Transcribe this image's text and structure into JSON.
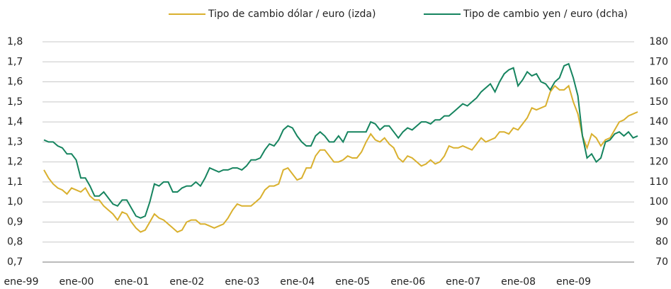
{
  "chart_data": {
    "type": "line",
    "categories": [
      "ene-99",
      null,
      null,
      null,
      null,
      null,
      null,
      null,
      null,
      null,
      null,
      null,
      "ene-00",
      null,
      null,
      null,
      null,
      null,
      null,
      null,
      null,
      null,
      null,
      null,
      "ene-01",
      null,
      null,
      null,
      null,
      null,
      null,
      null,
      null,
      null,
      null,
      null,
      "ene-02",
      null,
      null,
      null,
      null,
      null,
      null,
      null,
      null,
      null,
      null,
      null,
      "ene-03",
      null,
      null,
      null,
      null,
      null,
      null,
      null,
      null,
      null,
      null,
      null,
      "ene-04",
      null,
      null,
      null,
      null,
      null,
      null,
      null,
      null,
      null,
      null,
      null,
      "ene-05",
      null,
      null,
      null,
      null,
      null,
      null,
      null,
      null,
      null,
      null,
      null,
      "ene-06",
      null,
      null,
      null,
      null,
      null,
      null,
      null,
      null,
      null,
      null,
      null,
      "ene-07",
      null,
      null,
      null,
      null,
      null,
      null,
      null,
      null,
      null,
      null,
      null,
      "ene-08",
      null,
      null,
      null,
      null,
      null,
      null,
      null,
      null,
      null,
      null,
      null,
      "ene-09",
      null,
      null,
      null,
      null,
      null,
      null,
      null,
      null,
      null
    ],
    "series": [
      {
        "name": "Tipo de cambio dólar / euro (izda)",
        "color": "#d9b02e",
        "axis": "y",
        "values": [
          1.16,
          1.12,
          1.09,
          1.07,
          1.06,
          1.04,
          1.07,
          1.06,
          1.05,
          1.07,
          1.03,
          1.01,
          1.01,
          0.98,
          0.96,
          0.94,
          0.91,
          0.95,
          0.94,
          0.9,
          0.87,
          0.85,
          0.86,
          0.9,
          0.94,
          0.92,
          0.91,
          0.89,
          0.87,
          0.85,
          0.86,
          0.9,
          0.91,
          0.91,
          0.89,
          0.89,
          0.88,
          0.87,
          0.88,
          0.89,
          0.92,
          0.96,
          0.99,
          0.98,
          0.98,
          0.98,
          1.0,
          1.02,
          1.06,
          1.08,
          1.08,
          1.09,
          1.16,
          1.17,
          1.14,
          1.11,
          1.12,
          1.17,
          1.17,
          1.23,
          1.26,
          1.26,
          1.23,
          1.2,
          1.2,
          1.21,
          1.23,
          1.22,
          1.22,
          1.25,
          1.3,
          1.34,
          1.31,
          1.3,
          1.32,
          1.29,
          1.27,
          1.22,
          1.2,
          1.23,
          1.22,
          1.2,
          1.18,
          1.19,
          1.21,
          1.19,
          1.2,
          1.23,
          1.28,
          1.27,
          1.27,
          1.28,
          1.27,
          1.26,
          1.29,
          1.32,
          1.3,
          1.31,
          1.32,
          1.35,
          1.35,
          1.34,
          1.37,
          1.36,
          1.39,
          1.42,
          1.47,
          1.46,
          1.47,
          1.48,
          1.55,
          1.58,
          1.56,
          1.56,
          1.58,
          1.5,
          1.44,
          1.33,
          1.27,
          1.34,
          1.32,
          1.28,
          1.31,
          1.32,
          1.36,
          1.4,
          1.41,
          1.43,
          1.44,
          1.45
        ]
      },
      {
        "name": "Tipo de cambio yen / euro (dcha)",
        "color": "#16845f",
        "axis": "y2",
        "values": [
          131,
          130,
          130,
          128,
          127,
          124,
          124,
          121,
          112,
          112,
          108,
          103,
          103,
          105,
          102,
          99,
          98,
          101,
          101,
          97,
          93,
          92,
          93,
          100,
          109,
          108,
          110,
          110,
          105,
          105,
          107,
          108,
          108,
          110,
          108,
          112,
          117,
          116,
          115,
          116,
          116,
          117,
          117,
          116,
          118,
          121,
          121,
          122,
          126,
          129,
          128,
          131,
          136,
          138,
          137,
          133,
          130,
          128,
          128,
          133,
          135,
          133,
          130,
          130,
          133,
          130,
          135,
          135,
          135,
          135,
          135,
          140,
          139,
          136,
          138,
          138,
          135,
          132,
          135,
          137,
          136,
          138,
          140,
          140,
          139,
          141,
          141,
          143,
          143,
          145,
          147,
          149,
          148,
          150,
          152,
          155,
          157,
          159,
          155,
          160,
          164,
          166,
          167,
          158,
          161,
          165,
          163,
          164,
          160,
          159,
          156,
          160,
          162,
          168,
          169,
          162,
          153,
          133,
          122,
          124,
          120,
          122,
          130,
          131,
          134,
          135,
          133,
          135,
          132,
          133
        ]
      }
    ],
    "ylim": [
      0.7,
      1.8
    ],
    "yticks": [
      {
        "value": 0.7,
        "label": "0,7"
      },
      {
        "value": 0.8,
        "label": "0,8"
      },
      {
        "value": 0.9,
        "label": "0,9"
      },
      {
        "value": 1.0,
        "label": "1,0"
      },
      {
        "value": 1.1,
        "label": "1,1"
      },
      {
        "value": 1.2,
        "label": "1,2"
      },
      {
        "value": 1.3,
        "label": "1,3"
      },
      {
        "value": 1.4,
        "label": "1,4"
      },
      {
        "value": 1.5,
        "label": "1,5"
      },
      {
        "value": 1.6,
        "label": "1,6"
      },
      {
        "value": 1.7,
        "label": "1,7"
      },
      {
        "value": 1.8,
        "label": "1,8"
      }
    ],
    "y2lim": [
      70,
      180
    ],
    "y2ticks": [
      70,
      80,
      90,
      100,
      110,
      120,
      130,
      140,
      150,
      160,
      170,
      180
    ],
    "grid": true,
    "legend": "top-right"
  }
}
